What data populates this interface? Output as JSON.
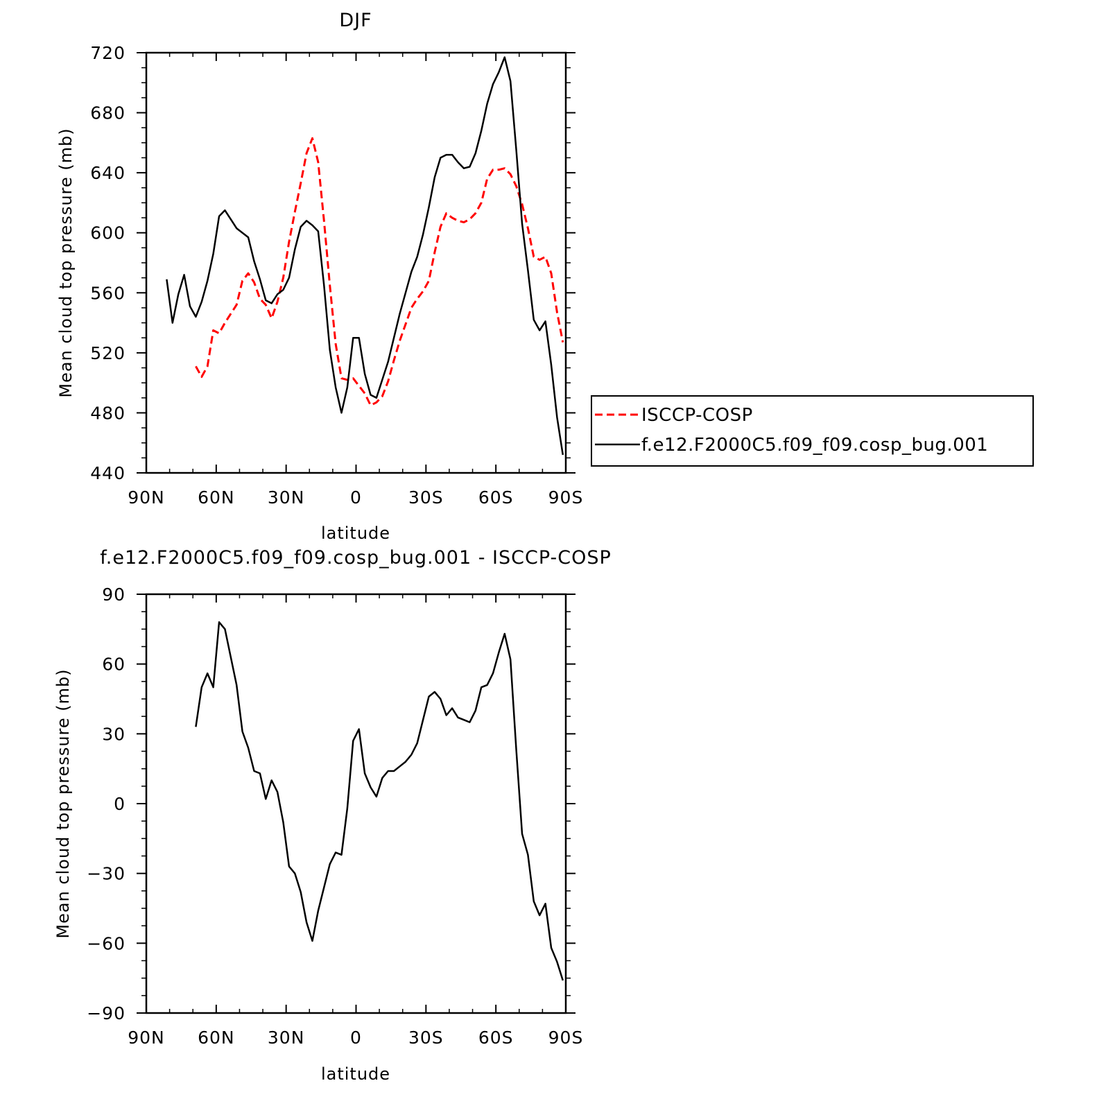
{
  "chart_data": [
    {
      "type": "line",
      "title": "DJF",
      "xlabel": "latitude",
      "ylabel": "Mean cloud top pressure (mb)",
      "xlim": [
        -90,
        90
      ],
      "ylim": [
        440,
        720
      ],
      "xticks": [
        -90,
        -60,
        -30,
        0,
        30,
        60,
        90
      ],
      "xtick_labels": [
        "90N",
        "60N",
        "30N",
        "0",
        "30S",
        "60S",
        "90S"
      ],
      "yticks": [
        440,
        480,
        520,
        560,
        600,
        640,
        680,
        720
      ],
      "ytick_labels": [
        "440",
        "480",
        "520",
        "560",
        "600",
        "640",
        "680",
        "720"
      ],
      "legend": {
        "placement": "right-bottom"
      },
      "series": [
        {
          "name": "ISCCP-COSP",
          "color": "#ff0000",
          "dash": "dashed",
          "x": [
            -68.75,
            -66.25,
            -63.75,
            -61.25,
            -58.75,
            -56.25,
            -53.75,
            -51.25,
            -48.75,
            -46.25,
            -43.75,
            -41.25,
            -38.75,
            -36.25,
            -33.75,
            -31.25,
            -28.75,
            -26.25,
            -23.75,
            -21.25,
            -18.75,
            -16.25,
            -13.75,
            -11.25,
            -8.75,
            -6.25,
            -3.75,
            -1.25,
            1.25,
            3.75,
            6.25,
            8.75,
            11.25,
            13.75,
            16.25,
            18.75,
            21.25,
            23.75,
            26.25,
            28.75,
            31.25,
            33.75,
            36.25,
            38.75,
            41.25,
            43.75,
            46.25,
            48.75,
            51.25,
            53.75,
            56.25,
            58.75,
            61.25,
            63.75,
            66.25,
            68.75,
            71.25,
            73.75,
            76.25,
            78.75,
            81.25,
            83.75,
            86.25,
            88.75
          ],
          "y": [
            511,
            504,
            511,
            535,
            533,
            540,
            546,
            552,
            568,
            573,
            567,
            556,
            552,
            543,
            554,
            570,
            594,
            614,
            633,
            653,
            663,
            647,
            608,
            565,
            526,
            503,
            502,
            503,
            498,
            493,
            485,
            487,
            491,
            501,
            515,
            528,
            539,
            550,
            556,
            561,
            568,
            587,
            604,
            613,
            610,
            608,
            607,
            609,
            613,
            620,
            636,
            642,
            642,
            643,
            639,
            631,
            619,
            603,
            584,
            582,
            584,
            573,
            547,
            527
          ]
        },
        {
          "name": "f.e12.F2000C5.f09_f09.cosp_bug.001",
          "color": "#000000",
          "dash": "solid",
          "x": [
            -81.25,
            -78.75,
            -76.25,
            -73.75,
            -71.25,
            -68.75,
            -66.25,
            -63.75,
            -61.25,
            -58.75,
            -56.25,
            -53.75,
            -51.25,
            -48.75,
            -46.25,
            -43.75,
            -41.25,
            -38.75,
            -36.25,
            -33.75,
            -31.25,
            -28.75,
            -26.25,
            -23.75,
            -21.25,
            -18.75,
            -16.25,
            -13.75,
            -11.25,
            -8.75,
            -6.25,
            -3.75,
            -1.25,
            1.25,
            3.75,
            6.25,
            8.75,
            11.25,
            13.75,
            16.25,
            18.75,
            21.25,
            23.75,
            26.25,
            28.75,
            31.25,
            33.75,
            36.25,
            38.75,
            41.25,
            43.75,
            46.25,
            48.75,
            51.25,
            53.75,
            56.25,
            58.75,
            61.25,
            63.75,
            66.25,
            68.75,
            71.25,
            73.75,
            76.25,
            78.75,
            81.25,
            83.75,
            86.25,
            88.75
          ],
          "y": [
            569,
            540,
            559,
            572,
            551,
            544,
            554,
            568,
            586,
            611,
            615,
            609,
            603,
            600,
            597,
            581,
            569,
            555,
            553,
            559,
            562,
            570,
            589,
            604,
            608,
            605,
            601,
            565,
            522,
            497,
            480,
            497,
            530,
            530,
            506,
            492,
            490,
            502,
            514,
            530,
            546,
            560,
            574,
            584,
            599,
            617,
            637,
            650,
            652,
            652,
            647,
            643,
            644,
            653,
            668,
            686,
            699,
            707,
            717,
            701,
            655,
            606,
            575,
            542,
            535,
            541,
            512,
            477,
            452
          ]
        }
      ]
    },
    {
      "type": "line",
      "title": "f.e12.F2000C5.f09_f09.cosp_bug.001 - ISCCP-COSP",
      "xlabel": "latitude",
      "ylabel": "Mean cloud top pressure (mb)",
      "xlim": [
        -90,
        90
      ],
      "ylim": [
        -90,
        90
      ],
      "xticks": [
        -90,
        -60,
        -30,
        0,
        30,
        60,
        90
      ],
      "xtick_labels": [
        "90N",
        "60N",
        "30N",
        "0",
        "30S",
        "60S",
        "90S"
      ],
      "yticks": [
        -90,
        -60,
        -30,
        0,
        30,
        60,
        90
      ],
      "ytick_labels": [
        "−90",
        "−60",
        "−30",
        "0",
        "30",
        "60",
        "90"
      ],
      "series": [
        {
          "color": "#000000",
          "dash": "solid",
          "x": [
            -68.75,
            -66.25,
            -63.75,
            -61.25,
            -58.75,
            -56.25,
            -53.75,
            -51.25,
            -48.75,
            -46.25,
            -43.75,
            -41.25,
            -38.75,
            -36.25,
            -33.75,
            -31.25,
            -28.75,
            -26.25,
            -23.75,
            -21.25,
            -18.75,
            -16.25,
            -13.75,
            -11.25,
            -8.75,
            -6.25,
            -3.75,
            -1.25,
            1.25,
            3.75,
            6.25,
            8.75,
            11.25,
            13.75,
            16.25,
            18.75,
            21.25,
            23.75,
            26.25,
            28.75,
            31.25,
            33.75,
            36.25,
            38.75,
            41.25,
            43.75,
            46.25,
            48.75,
            51.25,
            53.75,
            56.25,
            58.75,
            61.25,
            63.75,
            66.25,
            68.75,
            71.25,
            73.75,
            76.25,
            78.75,
            81.25,
            83.75,
            86.25,
            88.75
          ],
          "y": [
            33,
            50,
            56,
            50,
            78,
            75,
            63,
            51,
            31,
            24,
            14,
            13,
            2,
            10,
            5,
            -8,
            -27,
            -30,
            -38,
            -51,
            -59,
            -46,
            -36,
            -26,
            -21,
            -22,
            -2,
            27,
            32,
            13,
            7,
            3,
            11,
            14,
            14,
            16,
            18,
            21,
            26,
            36,
            46,
            48,
            45,
            38,
            41,
            37,
            36,
            35,
            40,
            50,
            51,
            56,
            65,
            73,
            62,
            23,
            -13,
            -22,
            -42,
            -48,
            -43,
            -62,
            -68,
            -76
          ]
        }
      ]
    }
  ]
}
